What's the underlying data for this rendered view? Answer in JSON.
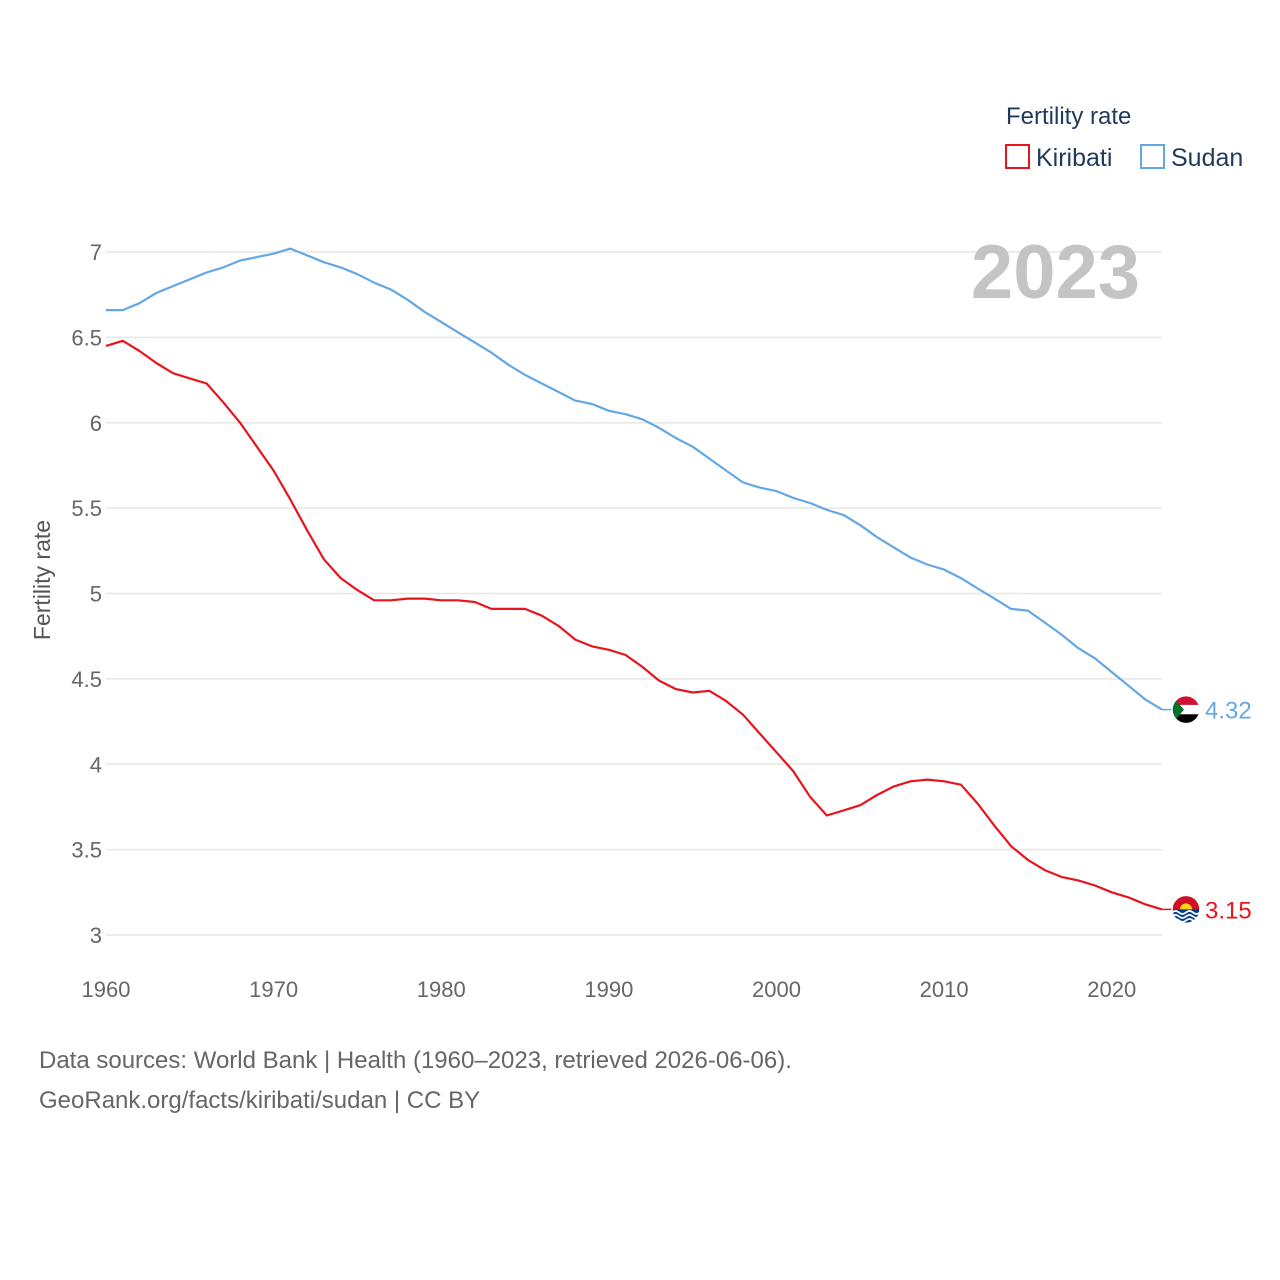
{
  "chart_data": {
    "type": "line",
    "title": "",
    "highlight_year": "2023",
    "xlabel": "",
    "ylabel": "Fertility rate",
    "xlim": [
      1960,
      2023
    ],
    "ylim": [
      3,
      7.2
    ],
    "x_ticks": [
      "1960",
      "1970",
      "1980",
      "1990",
      "2000",
      "2010",
      "2020"
    ],
    "y_ticks": [
      "3",
      "3.5",
      "4",
      "4.5",
      "5",
      "5.5",
      "6",
      "6.5",
      "7"
    ],
    "legend": {
      "title": "Fertility rate",
      "placement": "top-right"
    },
    "series": [
      {
        "name": "Kiribati",
        "color": "#e8141d",
        "end_label": "3.15",
        "flag": "kiribati-flag",
        "x": [
          1960,
          1961,
          1962,
          1963,
          1964,
          1965,
          1966,
          1967,
          1968,
          1969,
          1970,
          1971,
          1972,
          1973,
          1974,
          1975,
          1976,
          1977,
          1978,
          1979,
          1980,
          1981,
          1982,
          1983,
          1984,
          1985,
          1986,
          1987,
          1988,
          1989,
          1990,
          1991,
          1992,
          1993,
          1994,
          1995,
          1996,
          1997,
          1998,
          1999,
          2000,
          2001,
          2002,
          2003,
          2004,
          2005,
          2006,
          2007,
          2008,
          2009,
          2010,
          2011,
          2012,
          2013,
          2014,
          2015,
          2016,
          2017,
          2018,
          2019,
          2020,
          2021,
          2022,
          2023
        ],
        "values": [
          6.45,
          6.48,
          6.42,
          6.35,
          6.29,
          6.26,
          6.23,
          6.12,
          6.0,
          5.86,
          5.72,
          5.55,
          5.37,
          5.2,
          5.09,
          5.02,
          4.96,
          4.96,
          4.97,
          4.97,
          4.96,
          4.96,
          4.95,
          4.91,
          4.91,
          4.91,
          4.87,
          4.81,
          4.73,
          4.69,
          4.67,
          4.64,
          4.57,
          4.49,
          4.44,
          4.42,
          4.43,
          4.37,
          4.29,
          4.18,
          4.07,
          3.96,
          3.81,
          3.7,
          3.73,
          3.76,
          3.82,
          3.87,
          3.9,
          3.91,
          3.9,
          3.88,
          3.77,
          3.64,
          3.52,
          3.44,
          3.38,
          3.34,
          3.32,
          3.29,
          3.25,
          3.22,
          3.18,
          3.15
        ]
      },
      {
        "name": "Sudan",
        "color": "#63a8e4",
        "end_label": "4.32",
        "flag": "sudan-flag",
        "x": [
          1960,
          1961,
          1962,
          1963,
          1964,
          1965,
          1966,
          1967,
          1968,
          1969,
          1970,
          1971,
          1972,
          1973,
          1974,
          1975,
          1976,
          1977,
          1978,
          1979,
          1980,
          1981,
          1982,
          1983,
          1984,
          1985,
          1986,
          1987,
          1988,
          1989,
          1990,
          1991,
          1992,
          1993,
          1994,
          1995,
          1996,
          1997,
          1998,
          1999,
          2000,
          2001,
          2002,
          2003,
          2004,
          2005,
          2006,
          2007,
          2008,
          2009,
          2010,
          2011,
          2012,
          2013,
          2014,
          2015,
          2016,
          2017,
          2018,
          2019,
          2020,
          2021,
          2022,
          2023
        ],
        "values": [
          6.66,
          6.66,
          6.7,
          6.76,
          6.8,
          6.84,
          6.88,
          6.91,
          6.95,
          6.97,
          6.99,
          7.02,
          6.98,
          6.94,
          6.91,
          6.87,
          6.82,
          6.78,
          6.72,
          6.65,
          6.59,
          6.53,
          6.47,
          6.41,
          6.34,
          6.28,
          6.23,
          6.18,
          6.13,
          6.11,
          6.07,
          6.05,
          6.02,
          5.97,
          5.91,
          5.86,
          5.79,
          5.72,
          5.65,
          5.62,
          5.6,
          5.56,
          5.53,
          5.49,
          5.46,
          5.4,
          5.33,
          5.27,
          5.21,
          5.17,
          5.14,
          5.09,
          5.03,
          4.97,
          4.91,
          4.9,
          4.83,
          4.76,
          4.68,
          4.62,
          4.54,
          4.46,
          4.38,
          4.32
        ]
      }
    ]
  },
  "footer": {
    "line1": "Data sources: World Bank | Health (1960–2023, retrieved 2026-06-06).",
    "line2": "GeoRank.org/facts/kiribati/sudan | CC BY"
  }
}
